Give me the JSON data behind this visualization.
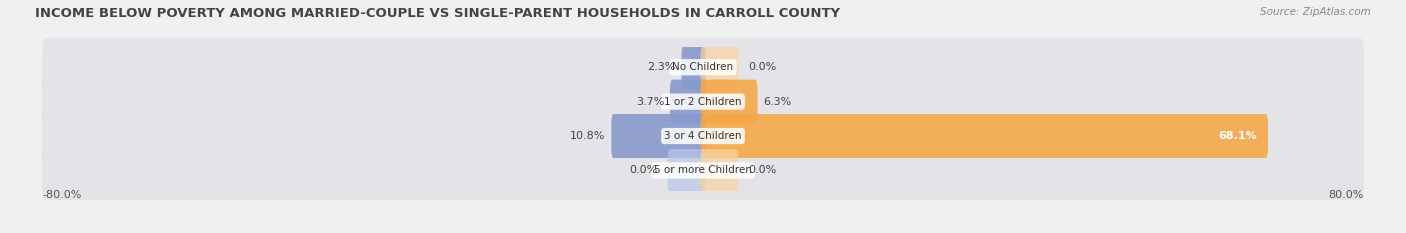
{
  "title": "INCOME BELOW POVERTY AMONG MARRIED-COUPLE VS SINGLE-PARENT HOUSEHOLDS IN CARROLL COUNTY",
  "source": "Source: ZipAtlas.com",
  "categories": [
    "No Children",
    "1 or 2 Children",
    "3 or 4 Children",
    "5 or more Children"
  ],
  "married_values": [
    2.3,
    3.7,
    10.8,
    0.0
  ],
  "single_values": [
    0.0,
    6.3,
    68.1,
    0.0
  ],
  "married_color": "#8899cc",
  "single_color": "#f5a84a",
  "married_color_light": "#b8c8e8",
  "single_color_light": "#f8d4a0",
  "bar_bg_color": "#e2e2e6",
  "bar_height": 0.72,
  "xlim_left": -80,
  "xlim_right": 80,
  "x_left_label": "-80.0%",
  "x_right_label": "80.0%",
  "title_fontsize": 9.5,
  "source_fontsize": 7.5,
  "label_fontsize": 8,
  "category_fontsize": 7.5,
  "legend_fontsize": 8,
  "background_color": "#f0f0f0",
  "bar_row_bg": "#e4e4e8"
}
